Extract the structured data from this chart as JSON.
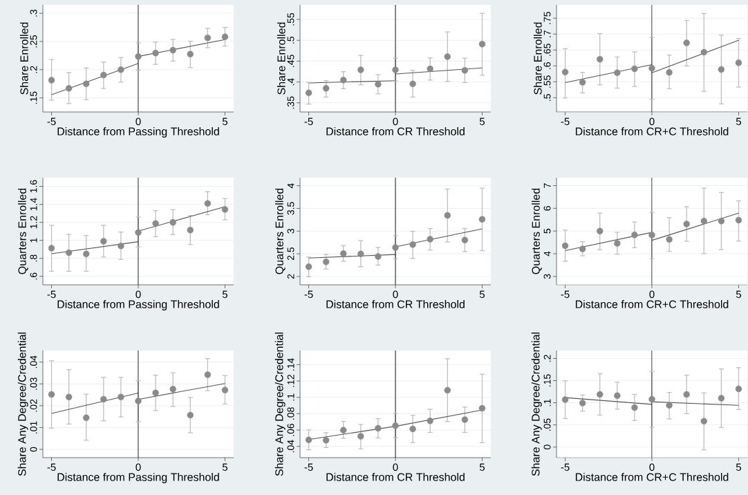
{
  "chart_data": [
    {
      "type": "scatter",
      "xlabel": "Distance from Passing Threshold",
      "ylabel": "Share Enrolled",
      "xlim": [
        -5.5,
        5.5
      ],
      "ylim": [
        0.125,
        0.315
      ],
      "xticks": [
        -5,
        0,
        5
      ],
      "yticks": [
        {
          "value": 0.15,
          "label": ".15"
        },
        {
          "value": 0.2,
          "label": ".2"
        },
        {
          "value": 0.25,
          "label": ".25"
        },
        {
          "value": 0.3,
          "label": ".3"
        }
      ],
      "grid": "y",
      "marker": "circle",
      "ref_lines": [
        {
          "axis": "x",
          "value": 0,
          "color": "#000000"
        }
      ],
      "series": [
        {
          "type": "scatter",
          "color": "#8a8a8a",
          "x": [
            -5,
            -4,
            -3,
            -2,
            -1,
            0,
            1,
            2,
            3,
            4,
            5
          ],
          "values": [
            0.1815,
            0.167,
            0.175,
            0.1905,
            0.2,
            0.2235,
            0.2296,
            0.2346,
            0.2276,
            0.2564,
            0.2584
          ],
          "errors": [
            [
              0.146,
              0.218
            ],
            [
              0.14,
              0.195
            ],
            [
              0.147,
              0.203
            ],
            [
              0.1667,
              0.2135
            ],
            [
              0.178,
              0.2215
            ],
            [
              0.1992,
              0.2477
            ],
            [
              0.2095,
              0.249
            ],
            [
              0.2152,
              0.2535
            ],
            [
              0.2037,
              0.2506
            ],
            [
              0.2391,
              0.2733
            ],
            [
              0.242,
              0.275
            ]
          ]
        },
        {
          "type": "line",
          "color": "#555555",
          "marker": "none",
          "x": [
            -5,
            0
          ],
          "values": [
            0.1556,
            0.2111
          ]
        },
        {
          "type": "line",
          "color": "#555555",
          "marker": "none",
          "x": [
            0,
            5
          ],
          "values": [
            0.2235,
            0.2535
          ]
        }
      ]
    },
    {
      "type": "scatter",
      "xlabel": "Distance from CR Threshold",
      "ylabel": "Share Enrolled",
      "xlim": [
        -5.5,
        5.5
      ],
      "ylim": [
        0.328,
        0.585
      ],
      "xticks": [
        -5,
        0,
        5
      ],
      "yticks": [
        {
          "value": 0.35,
          "label": ".35"
        },
        {
          "value": 0.4,
          "label": ".4"
        },
        {
          "value": 0.45,
          "label": ".45"
        },
        {
          "value": 0.5,
          "label": ".5"
        },
        {
          "value": 0.55,
          "label": ".55"
        }
      ],
      "grid": "y",
      "marker": "circle",
      "ref_lines": [
        {
          "axis": "x",
          "value": 0,
          "color": "#000000"
        }
      ],
      "series": [
        {
          "type": "scatter",
          "color": "#8a8a8a",
          "x": [
            -5,
            -4,
            -3,
            -2,
            -1,
            0,
            1,
            2,
            3,
            4,
            5
          ],
          "values": [
            0.3739,
            0.3846,
            0.4046,
            0.4292,
            0.3946,
            0.4292,
            0.3954,
            0.4315,
            0.4608,
            0.4277,
            0.4908
          ],
          "errors": [
            [
              0.347,
              0.399
            ],
            [
              0.3638,
              0.4031
            ],
            [
              0.3838,
              0.4246
            ],
            [
              0.3931,
              0.4638
            ],
            [
              0.3715,
              0.4177
            ],
            [
              0.4023,
              0.4569
            ],
            [
              0.3638,
              0.4277
            ],
            [
              0.4046,
              0.4577
            ],
            [
              0.4015,
              0.52
            ],
            [
              0.3985,
              0.4569
            ],
            [
              0.4162,
              0.5646
            ]
          ]
        },
        {
          "type": "line",
          "color": "#555555",
          "marker": "none",
          "x": [
            -5,
            0
          ],
          "values": [
            0.3977,
            0.4031
          ]
        },
        {
          "type": "line",
          "color": "#555555",
          "marker": "none",
          "x": [
            0,
            5
          ],
          "values": [
            0.4192,
            0.4338
          ]
        }
      ]
    },
    {
      "type": "scatter",
      "xlabel": "Distance from CR+C Threshold",
      "ylabel": "Share Enrolled",
      "xlim": [
        -5.5,
        5.5
      ],
      "ylim": [
        0.455,
        0.792
      ],
      "xticks": [
        -5,
        0,
        5
      ],
      "yticks": [
        {
          "value": 0.5,
          "label": ".5"
        },
        {
          "value": 0.55,
          "label": ".55"
        },
        {
          "value": 0.6,
          "label": ".6"
        },
        {
          "value": 0.65,
          "label": ".65"
        },
        {
          "value": 0.7,
          "label": ".7"
        },
        {
          "value": 0.75,
          "label": ".75"
        }
      ],
      "grid": "y",
      "marker": "circle",
      "ref_lines": [
        {
          "axis": "x",
          "value": 0,
          "color": "#000000"
        }
      ],
      "series": [
        {
          "type": "scatter",
          "color": "#8a8a8a",
          "x": [
            -5,
            -4,
            -3,
            -2,
            -1,
            0,
            1,
            2,
            3,
            4,
            5
          ],
          "values": [
            0.5806,
            0.5484,
            0.621,
            0.5786,
            0.5907,
            0.5927,
            0.5796,
            0.6724,
            0.6431,
            0.5887,
            0.6099
          ],
          "errors": [
            [
              0.499,
              0.654
            ],
            [
              0.5151,
              0.5796
            ],
            [
              0.5403,
              0.7016
            ],
            [
              0.53,
              0.628
            ],
            [
              0.5353,
              0.6442
            ],
            [
              0.495,
              0.6895
            ],
            [
              0.528,
              0.634
            ],
            [
              0.6,
              0.743
            ],
            [
              0.52,
              0.765
            ],
            [
              0.4808,
              0.6966
            ],
            [
              0.5333,
              0.6865
            ]
          ]
        },
        {
          "type": "line",
          "color": "#555555",
          "marker": "none",
          "x": [
            -5,
            0
          ],
          "values": [
            0.5474,
            0.6038
          ]
        },
        {
          "type": "line",
          "color": "#555555",
          "marker": "none",
          "x": [
            0,
            5
          ],
          "values": [
            0.5786,
            0.6804
          ]
        }
      ]
    },
    {
      "type": "scatter",
      "xlabel": "Distance from Passing Threshold",
      "ylabel": "Quarters Enrolled",
      "xlim": [
        -5.5,
        5.5
      ],
      "ylim": [
        0.505,
        1.697
      ],
      "xticks": [
        -5,
        0,
        5
      ],
      "yticks": [
        {
          "value": 0.6,
          "label": ".6"
        },
        {
          "value": 0.8,
          "label": ".8"
        },
        1,
        1.2,
        1.4,
        1.6
      ],
      "grid": "y",
      "marker": "circle",
      "ref_lines": [
        {
          "axis": "x",
          "value": 0,
          "color": "#000000"
        }
      ],
      "series": [
        {
          "type": "scatter",
          "color": "#8a8a8a",
          "x": [
            -5,
            -4,
            -3,
            -2,
            -1,
            0,
            1,
            2,
            3,
            4,
            5
          ],
          "values": [
            0.913,
            0.862,
            0.849,
            0.99,
            0.938,
            1.087,
            1.187,
            1.2,
            1.115,
            1.41,
            1.344
          ],
          "errors": [
            [
              0.656,
              1.167
            ],
            [
              0.656,
              1.067
            ],
            [
              0.656,
              1.054
            ],
            [
              0.815,
              1.167
            ],
            [
              0.787,
              1.092
            ],
            [
              0.926,
              1.259
            ],
            [
              1.041,
              1.331
            ],
            [
              1.064,
              1.341
            ],
            [
              0.954,
              1.277
            ],
            [
              1.285,
              1.541
            ],
            [
              1.228,
              1.464
            ]
          ]
        },
        {
          "type": "line",
          "color": "#555555",
          "marker": "none",
          "x": [
            -5,
            0
          ],
          "values": [
            0.851,
            0.985
          ]
        },
        {
          "type": "line",
          "color": "#555555",
          "marker": "none",
          "x": [
            0,
            5
          ],
          "values": [
            1.103,
            1.374
          ]
        }
      ]
    },
    {
      "type": "scatter",
      "xlabel": "Distance from CR Threshold",
      "ylabel": "Quarters Enrolled",
      "xlim": [
        -5.5,
        5.5
      ],
      "ylim": [
        1.816,
        4.177
      ],
      "xticks": [
        -5,
        0,
        5
      ],
      "yticks": [
        2,
        2.5,
        3,
        3.5,
        4
      ],
      "grid": "y",
      "marker": "circle",
      "ref_lines": [
        {
          "axis": "x",
          "value": 0,
          "color": "#000000"
        }
      ],
      "series": [
        {
          "type": "scatter",
          "color": "#8a8a8a",
          "x": [
            -5,
            -4,
            -3,
            -2,
            -1,
            0,
            1,
            2,
            3,
            4,
            5
          ],
          "values": [
            2.216,
            2.322,
            2.505,
            2.498,
            2.442,
            2.64,
            2.703,
            2.823,
            3.346,
            2.802,
            3.261
          ],
          "errors": [
            [
              1.996,
              2.428
            ],
            [
              2.166,
              2.484
            ],
            [
              2.336,
              2.682
            ],
            [
              2.216,
              2.788
            ],
            [
              2.251,
              2.64
            ],
            [
              2.392,
              2.901
            ],
            [
              2.399,
              2.993
            ],
            [
              2.583,
              3.057
            ],
            [
              2.76,
              3.926
            ],
            [
              2.548,
              3.057
            ],
            [
              2.569,
              3.947
            ]
          ]
        },
        {
          "type": "line",
          "color": "#555555",
          "marker": "none",
          "x": [
            -5,
            0
          ],
          "values": [
            2.406,
            2.484
          ]
        },
        {
          "type": "line",
          "color": "#555555",
          "marker": "none",
          "x": [
            0,
            5
          ],
          "values": [
            2.654,
            3.049
          ]
        }
      ]
    },
    {
      "type": "scatter",
      "xlabel": "Distance from CR+C Threshold",
      "ylabel": "Quarters Enrolled",
      "xlim": [
        -5.5,
        5.5
      ],
      "ylim": [
        2.63,
        7.35
      ],
      "xticks": [
        -5,
        0,
        5
      ],
      "yticks": [
        3,
        4,
        5,
        6,
        7
      ],
      "grid": "y",
      "marker": "circle",
      "ref_lines": [
        {
          "axis": "x",
          "value": 0,
          "color": "#000000"
        }
      ],
      "series": [
        {
          "type": "scatter",
          "color": "#8a8a8a",
          "x": [
            -5,
            -4,
            -3,
            -2,
            -1,
            0,
            1,
            2,
            3,
            4,
            5
          ],
          "values": [
            4.35,
            4.21,
            5.0,
            4.46,
            4.83,
            4.82,
            4.63,
            5.31,
            5.44,
            5.44,
            5.48
          ],
          "errors": [
            [
              3.67,
              5.04
            ],
            [
              3.91,
              4.53
            ],
            [
              4.18,
              5.79
            ],
            [
              3.98,
              4.94
            ],
            [
              4.27,
              5.4
            ],
            [
              3.78,
              5.82
            ],
            [
              4.1,
              5.59
            ],
            [
              4.55,
              6.07
            ],
            [
              4.0,
              6.89
            ],
            [
              4.18,
              6.7
            ],
            [
              4.56,
              6.33
            ]
          ]
        },
        {
          "type": "line",
          "color": "#555555",
          "marker": "none",
          "x": [
            -5,
            0
          ],
          "values": [
            4.14,
            4.94
          ]
        },
        {
          "type": "line",
          "color": "#555555",
          "marker": "none",
          "x": [
            0,
            5
          ],
          "values": [
            4.59,
            5.79
          ]
        }
      ]
    },
    {
      "type": "scatter",
      "xlabel": "Distance from Passing Threshold",
      "ylabel": "Share Any Degree/Credential",
      "xlim": [
        -5.5,
        5.5
      ],
      "ylim": [
        -0.0038,
        0.0453
      ],
      "xticks": [
        -5,
        0,
        5
      ],
      "yticks": [
        0,
        {
          "value": 0.01,
          "label": ".01"
        },
        {
          "value": 0.02,
          "label": ".02"
        },
        {
          "value": 0.03,
          "label": ".03"
        },
        {
          "value": 0.04,
          "label": ".04"
        }
      ],
      "grid": "y",
      "marker": "circle",
      "ref_lines": [
        {
          "axis": "x",
          "value": 0,
          "color": "#000000"
        }
      ],
      "series": [
        {
          "type": "scatter",
          "color": "#8a8a8a",
          "x": [
            -5,
            -4,
            -3,
            -2,
            -1,
            0,
            1,
            2,
            3,
            4,
            5
          ],
          "values": [
            0.0252,
            0.024,
            0.0145,
            0.023,
            0.024,
            0.0222,
            0.0259,
            0.0276,
            0.0157,
            0.0342,
            0.0272
          ],
          "errors": [
            [
              0.0097,
              0.0406
            ],
            [
              0.0116,
              0.0365
            ],
            [
              0.0042,
              0.0253
            ],
            [
              0.0131,
              0.033
            ],
            [
              0.0149,
              0.033
            ],
            [
              0.0127,
              0.0315
            ],
            [
              0.0178,
              0.034
            ],
            [
              0.0197,
              0.0351
            ],
            [
              0.0076,
              0.0238
            ],
            [
              0.0269,
              0.0416
            ],
            [
              0.0208,
              0.0338
            ]
          ]
        },
        {
          "type": "line",
          "color": "#555555",
          "marker": "none",
          "x": [
            -5,
            0
          ],
          "values": [
            0.0165,
            0.0258
          ]
        },
        {
          "type": "line",
          "color": "#555555",
          "marker": "none",
          "x": [
            0,
            5
          ],
          "values": [
            0.0229,
            0.0302
          ]
        }
      ]
    },
    {
      "type": "scatter",
      "xlabel": "Distance from CR Threshold",
      "ylabel": "Share Any Degree/Credential",
      "xlim": [
        -5.5,
        5.5
      ],
      "ylim": [
        0.0262,
        0.1573
      ],
      "xticks": [
        -5,
        0,
        5
      ],
      "yticks": [
        {
          "value": 0.04,
          "label": ".04"
        },
        {
          "value": 0.06,
          "label": ".06"
        },
        {
          "value": 0.08,
          "label": ".08"
        },
        {
          "value": 0.1,
          "label": ".1"
        },
        {
          "value": 0.12,
          "label": ".12"
        },
        {
          "value": 0.14,
          "label": ".14"
        }
      ],
      "grid": "y",
      "marker": "circle",
      "ref_lines": [
        {
          "axis": "x",
          "value": 0,
          "color": "#000000"
        }
      ],
      "series": [
        {
          "type": "scatter",
          "color": "#8a8a8a",
          "x": [
            -5,
            -4,
            -3,
            -2,
            -1,
            0,
            1,
            2,
            3,
            4,
            5
          ],
          "values": [
            0.048,
            0.0476,
            0.0598,
            0.0524,
            0.0622,
            0.0654,
            0.0614,
            0.0713,
            0.1087,
            0.0728,
            0.0866
          ],
          "errors": [
            [
              0.0358,
              0.0602
            ],
            [
              0.0386,
              0.0567
            ],
            [
              0.05,
              0.0706
            ],
            [
              0.037,
              0.0669
            ],
            [
              0.0504,
              0.074
            ],
            [
              0.0508,
              0.08
            ],
            [
              0.0445,
              0.078
            ],
            [
              0.0571,
              0.0854
            ],
            [
              0.0705,
              0.1472
            ],
            [
              0.0571,
              0.0882
            ],
            [
              0.0445,
              0.1283
            ]
          ]
        },
        {
          "type": "line",
          "color": "#555555",
          "marker": "none",
          "x": [
            -5,
            0
          ],
          "values": [
            0.0484,
            0.0646
          ]
        },
        {
          "type": "line",
          "color": "#555555",
          "marker": "none",
          "x": [
            0,
            5
          ],
          "values": [
            0.0646,
            0.0846
          ]
        }
      ]
    },
    {
      "type": "scatter",
      "xlabel": "Distance from CR+C Threshold",
      "ylabel": "Share Any Degree/Credential",
      "xlim": [
        -5.5,
        5.5
      ],
      "ylim": [
        -0.024,
        0.218
      ],
      "xticks": [
        -5,
        0,
        5
      ],
      "yticks": [
        0,
        {
          "value": 0.05,
          "label": ".05"
        },
        {
          "value": 0.1,
          "label": ".1"
        },
        {
          "value": 0.15,
          "label": ".15"
        },
        {
          "value": 0.2,
          "label": ".2"
        }
      ],
      "grid": "y",
      "marker": "circle",
      "ref_lines": [
        {
          "axis": "x",
          "value": 0,
          "color": "#000000"
        }
      ],
      "series": [
        {
          "type": "scatter",
          "color": "#8a8a8a",
          "x": [
            -5,
            -4,
            -3,
            -2,
            -1,
            0,
            1,
            2,
            3,
            4,
            5
          ],
          "values": [
            0.1073,
            0.0993,
            0.1189,
            0.116,
            0.0891,
            0.108,
            0.0942,
            0.1189,
            0.0585,
            0.1102,
            0.1313
          ],
          "errors": [
            [
              0.0644,
              0.1495
            ],
            [
              0.0811,
              0.1175
            ],
            [
              0.0724,
              0.1655
            ],
            [
              0.0855,
              0.1465
            ],
            [
              0.06,
              0.1189
            ],
            [
              0.0447,
              0.1705
            ],
            [
              0.0636,
              0.1233
            ],
            [
              0.0753,
              0.1625
            ],
            [
              -0.0062,
              0.1225
            ],
            [
              0.044,
              0.1764
            ],
            [
              0.0847,
              0.1793
            ]
          ]
        },
        {
          "type": "line",
          "color": "#555555",
          "marker": "none",
          "x": [
            -5,
            0
          ],
          "values": [
            0.1116,
            0.0964
          ]
        },
        {
          "type": "line",
          "color": "#555555",
          "marker": "none",
          "x": [
            0,
            5
          ],
          "values": [
            0.1022,
            0.0942
          ]
        }
      ]
    }
  ]
}
